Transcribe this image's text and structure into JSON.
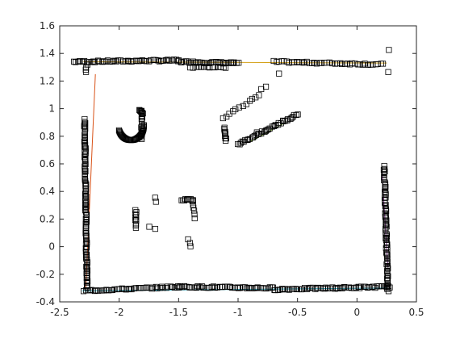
{
  "chart_data": {
    "type": "scatter",
    "title": "",
    "xlabel": "",
    "ylabel": "",
    "xlim": [
      -2.5,
      0.5
    ],
    "ylim": [
      -0.4,
      1.6
    ],
    "xticks": [
      -2.5,
      -2,
      -1.5,
      -1,
      -0.5,
      0,
      0.5
    ],
    "yticks": [
      -0.4,
      -0.2,
      0,
      0.2,
      0.4,
      0.6,
      0.8,
      1,
      1.2,
      1.4,
      1.6
    ],
    "grid": false,
    "marker": "square",
    "marker_color": "#000000",
    "segments": [
      {
        "x": [
          -2.3,
          0.25
        ],
        "y": [
          1.34,
          1.33
        ],
        "color": "#d4a017"
      },
      {
        "x": [
          -2.31,
          0.25
        ],
        "y": [
          -0.32,
          -0.3
        ],
        "color": "#33b5cc"
      },
      {
        "x": [
          -2.28,
          -2.2
        ],
        "y": [
          -0.3,
          1.25
        ],
        "color": "#d95319"
      },
      {
        "x": [
          0.21,
          0.26
        ],
        "y": [
          0.55,
          -0.15
        ],
        "color": "#7e2f8e"
      },
      {
        "x": [
          -0.9,
          -0.6
        ],
        "y": [
          0.76,
          0.9
        ],
        "color": "#77ac30"
      }
    ],
    "clusters": [
      {
        "from": [
          -2.38,
          1.34
        ],
        "to": [
          -1.5,
          1.35
        ],
        "n": 50
      },
      {
        "from": [
          -1.5,
          1.34
        ],
        "to": [
          -1.0,
          1.33
        ],
        "n": 34
      },
      {
        "from": [
          -0.7,
          1.34
        ],
        "to": [
          0.22,
          1.32
        ],
        "n": 44
      },
      {
        "from": [
          -2.27,
          1.32
        ],
        "to": [
          -2.28,
          1.26
        ],
        "n": 4
      },
      {
        "from": [
          -1.4,
          1.3
        ],
        "to": [
          -1.1,
          1.3
        ],
        "n": 14
      },
      {
        "from": [
          0.27,
          1.42
        ],
        "to": [
          0.27,
          1.42
        ],
        "n": 1
      },
      {
        "from": [
          0.26,
          1.26
        ],
        "to": [
          0.26,
          1.26
        ],
        "n": 1
      },
      {
        "from": [
          -2.29,
          0.92
        ],
        "to": [
          -2.27,
          -0.3
        ],
        "n": 110
      },
      {
        "from": [
          -2.3,
          -0.32
        ],
        "to": [
          -1.5,
          -0.29
        ],
        "n": 46
      },
      {
        "from": [
          -1.5,
          -0.29
        ],
        "to": [
          -0.7,
          -0.3
        ],
        "n": 50
      },
      {
        "from": [
          -0.7,
          -0.31
        ],
        "to": [
          0.27,
          -0.29
        ],
        "n": 60
      },
      {
        "from": [
          0.23,
          0.58
        ],
        "to": [
          0.26,
          -0.32
        ],
        "n": 75
      },
      {
        "from": [
          -1.47,
          0.34
        ],
        "to": [
          -1.38,
          0.34
        ],
        "n": 10
      },
      {
        "from": [
          -1.39,
          0.33
        ],
        "to": [
          -1.36,
          0.21
        ],
        "n": 6
      },
      {
        "from": [
          -1.86,
          0.27
        ],
        "to": [
          -1.86,
          0.14
        ],
        "n": 10
      },
      {
        "from": [
          -1.7,
          0.35
        ],
        "to": [
          -1.69,
          0.33
        ],
        "n": 2
      },
      {
        "from": [
          -1.42,
          0.05
        ],
        "to": [
          -1.4,
          0.0
        ],
        "n": 3
      },
      {
        "from": [
          -1.75,
          0.15
        ],
        "to": [
          -1.7,
          0.13
        ],
        "n": 2
      },
      {
        "from": [
          -1.13,
          0.93
        ],
        "to": [
          -0.82,
          1.1
        ],
        "n": 12
      },
      {
        "from": [
          -1.12,
          0.86
        ],
        "to": [
          -1.1,
          0.77
        ],
        "n": 10
      },
      {
        "from": [
          -0.8,
          1.14
        ],
        "to": [
          -0.77,
          1.16
        ],
        "n": 2
      },
      {
        "from": [
          -0.65,
          1.25
        ],
        "to": [
          -0.65,
          1.25
        ],
        "n": 1
      },
      {
        "from": [
          -1.0,
          0.74
        ],
        "to": [
          -0.5,
          0.96
        ],
        "n": 40
      },
      {
        "from": [
          -0.84,
          0.83
        ],
        "to": [
          -0.84,
          0.83
        ],
        "n": 1
      }
    ],
    "arc": {
      "cx": -1.9,
      "cy": 0.88,
      "r": 0.12,
      "from": 200,
      "to": 360,
      "n": 40
    }
  }
}
